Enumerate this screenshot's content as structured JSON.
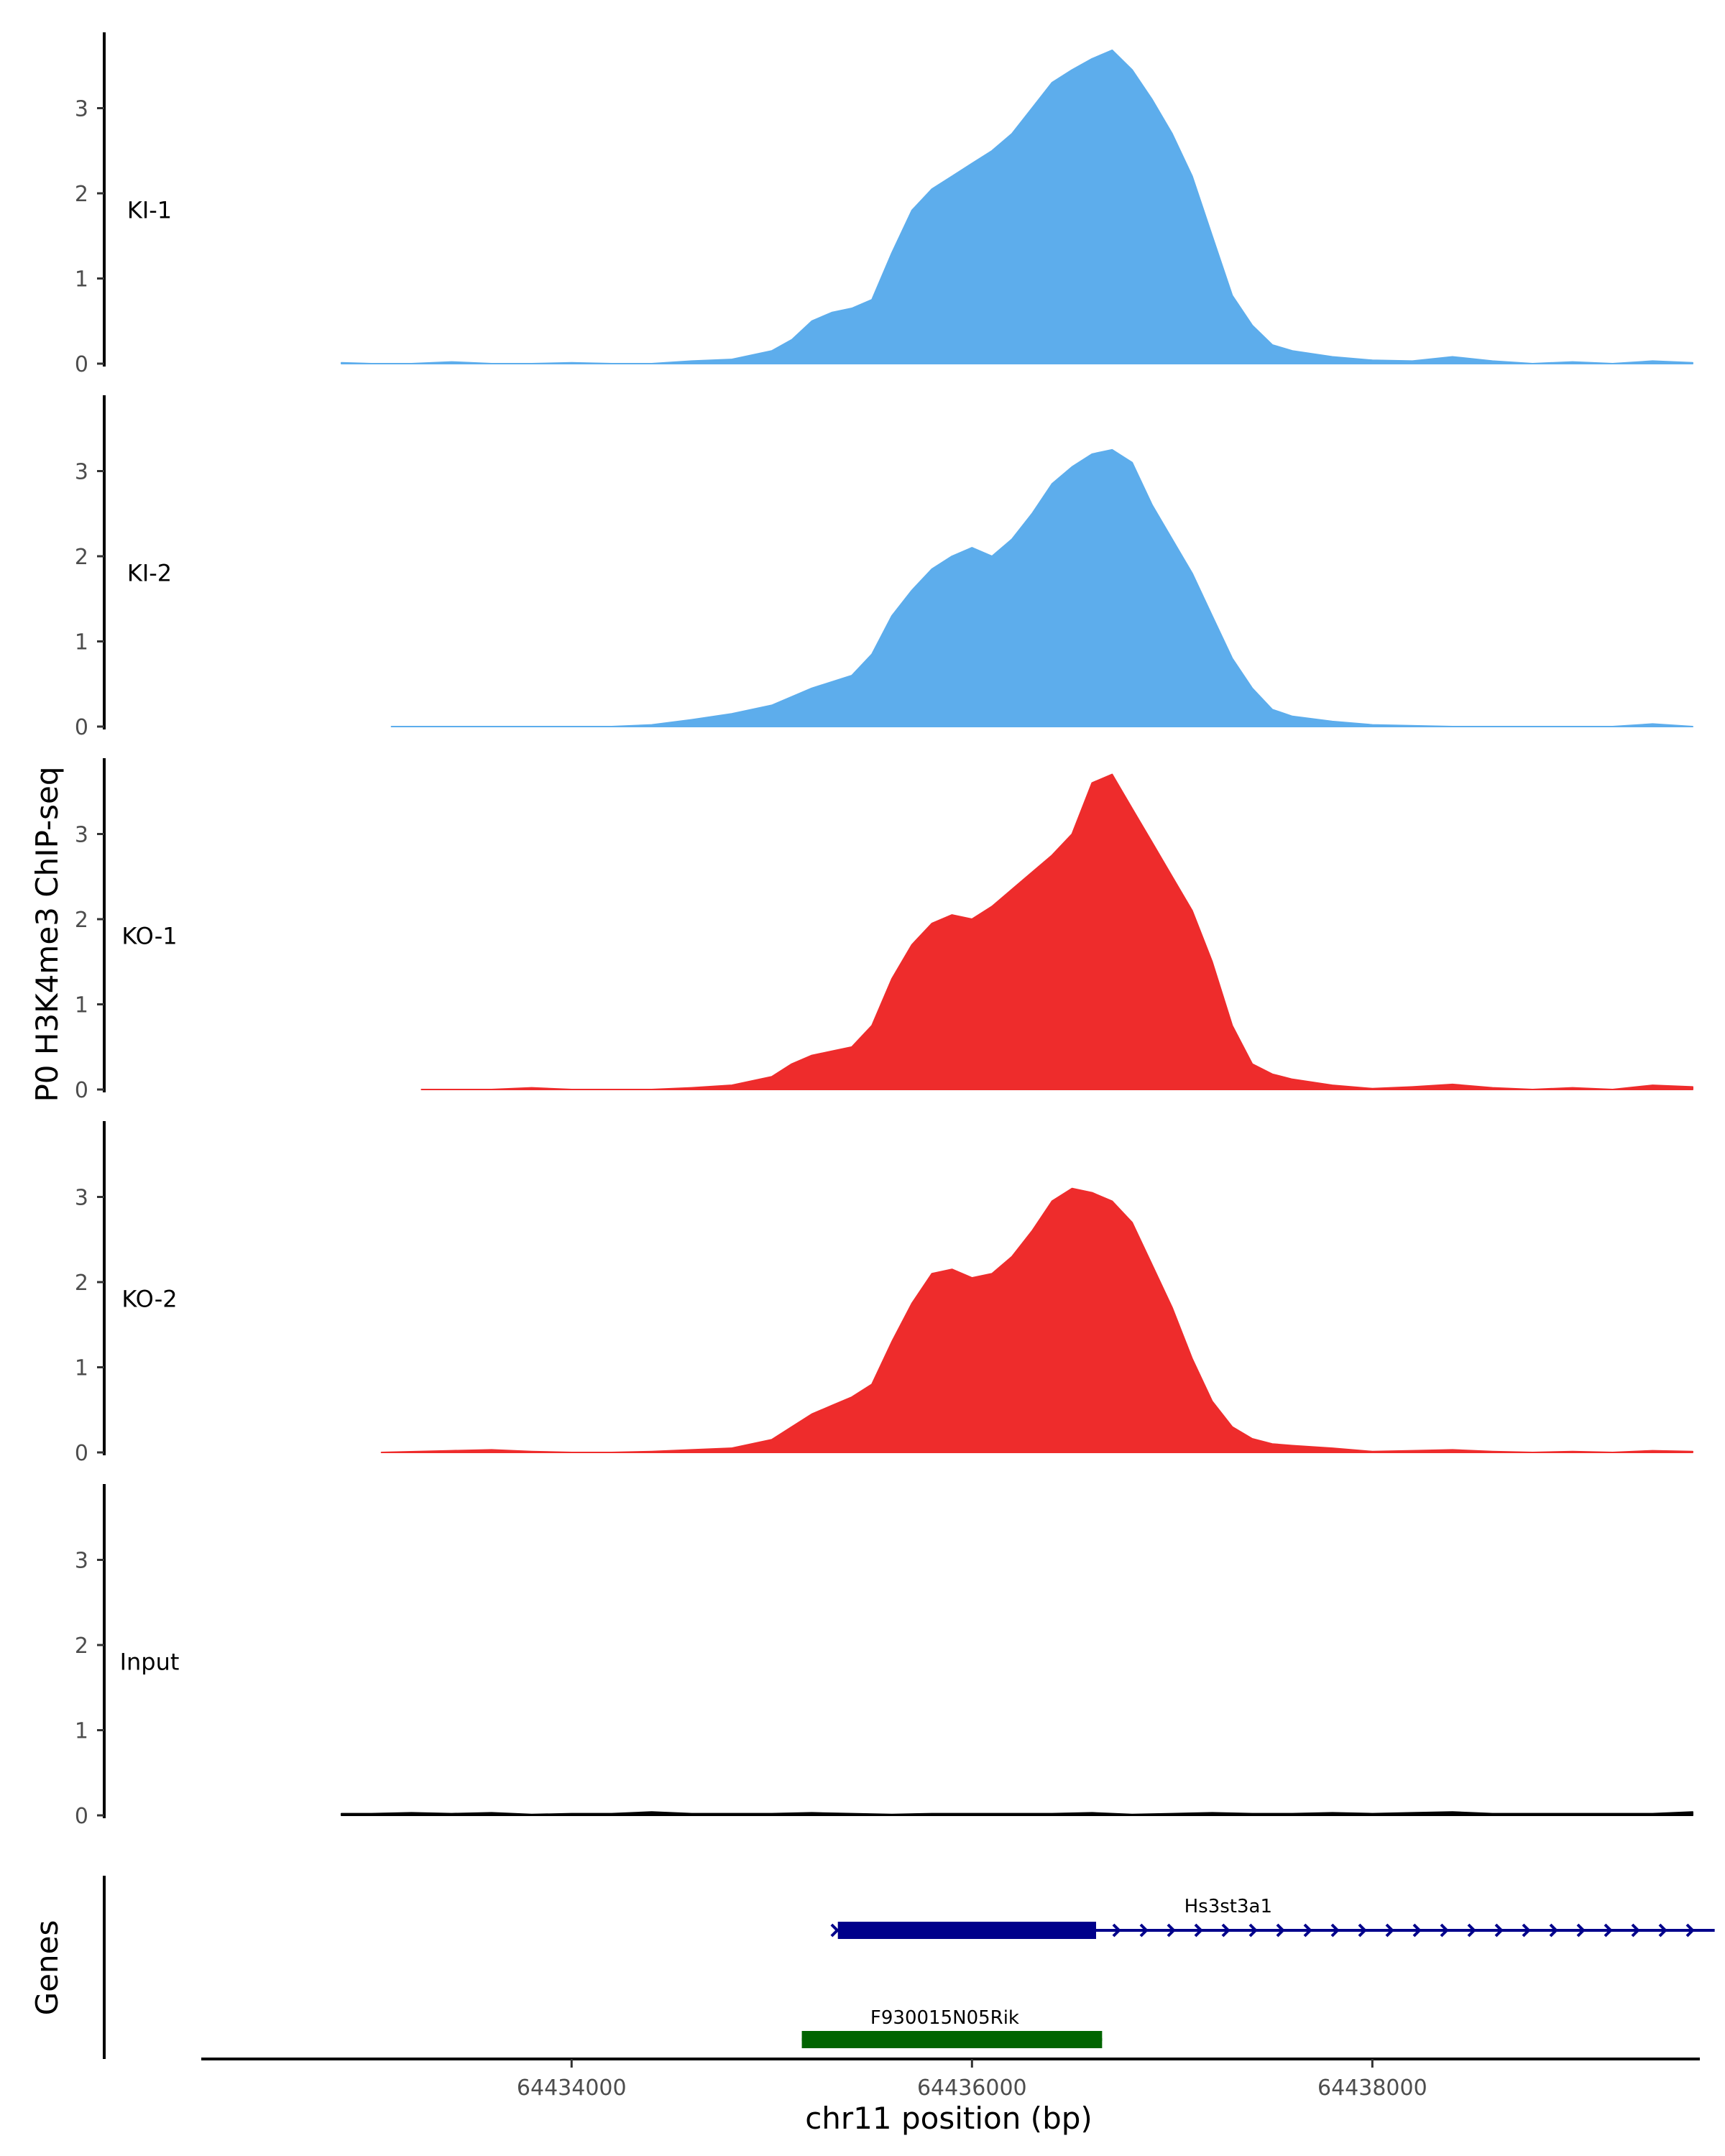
{
  "chart_data": {
    "type": "area",
    "title": "",
    "ylabel": "P0 H3K4me3 ChIP-seq",
    "xlabel": "chr11 position (bp)",
    "genes_label": "Genes",
    "xlim": [
      64432150,
      64439600
    ],
    "ylim": [
      0,
      3.9
    ],
    "y_ticks": [
      0,
      1,
      2,
      3
    ],
    "x_ticks": [
      64434000,
      64436000,
      64438000
    ],
    "x_tick_labels": [
      "64434000",
      "64436000",
      "64438000"
    ],
    "series": [
      {
        "name": "KI-1",
        "color": "#5DADEC",
        "points": [
          [
            64432850,
            0.01
          ],
          [
            64433000,
            0
          ],
          [
            64433200,
            0
          ],
          [
            64433400,
            0.02
          ],
          [
            64433600,
            0
          ],
          [
            64433800,
            0
          ],
          [
            64434000,
            0.01
          ],
          [
            64434200,
            0
          ],
          [
            64434400,
            0
          ],
          [
            64434600,
            0.03
          ],
          [
            64434800,
            0.05
          ],
          [
            64435000,
            0.15
          ],
          [
            64435100,
            0.28
          ],
          [
            64435200,
            0.5
          ],
          [
            64435300,
            0.6
          ],
          [
            64435400,
            0.65
          ],
          [
            64435500,
            0.75
          ],
          [
            64435600,
            1.3
          ],
          [
            64435700,
            1.8
          ],
          [
            64435800,
            2.05
          ],
          [
            64435900,
            2.2
          ],
          [
            64436000,
            2.35
          ],
          [
            64436100,
            2.5
          ],
          [
            64436200,
            2.7
          ],
          [
            64436300,
            3.0
          ],
          [
            64436400,
            3.3
          ],
          [
            64436500,
            3.45
          ],
          [
            64436600,
            3.58
          ],
          [
            64436700,
            3.68
          ],
          [
            64436800,
            3.45
          ],
          [
            64436900,
            3.1
          ],
          [
            64437000,
            2.7
          ],
          [
            64437100,
            2.2
          ],
          [
            64437200,
            1.5
          ],
          [
            64437300,
            0.8
          ],
          [
            64437400,
            0.45
          ],
          [
            64437500,
            0.22
          ],
          [
            64437600,
            0.15
          ],
          [
            64437800,
            0.08
          ],
          [
            64438000,
            0.04
          ],
          [
            64438200,
            0.03
          ],
          [
            64438400,
            0.08
          ],
          [
            64438600,
            0.03
          ],
          [
            64438800,
            0
          ],
          [
            64439000,
            0.02
          ],
          [
            64439200,
            0
          ],
          [
            64439400,
            0.03
          ],
          [
            64439600,
            0.01
          ]
        ]
      },
      {
        "name": "KI-2",
        "color": "#5DADEC",
        "points": [
          [
            64433100,
            0
          ],
          [
            64433600,
            0
          ],
          [
            64434000,
            0
          ],
          [
            64434200,
            0
          ],
          [
            64434400,
            0.02
          ],
          [
            64434600,
            0.08
          ],
          [
            64434800,
            0.15
          ],
          [
            64435000,
            0.25
          ],
          [
            64435200,
            0.45
          ],
          [
            64435400,
            0.6
          ],
          [
            64435500,
            0.85
          ],
          [
            64435600,
            1.3
          ],
          [
            64435700,
            1.6
          ],
          [
            64435800,
            1.85
          ],
          [
            64435900,
            2.0
          ],
          [
            64436000,
            2.1
          ],
          [
            64436100,
            2.0
          ],
          [
            64436200,
            2.2
          ],
          [
            64436300,
            2.5
          ],
          [
            64436400,
            2.85
          ],
          [
            64436500,
            3.05
          ],
          [
            64436600,
            3.2
          ],
          [
            64436700,
            3.25
          ],
          [
            64436800,
            3.1
          ],
          [
            64436900,
            2.6
          ],
          [
            64437000,
            2.2
          ],
          [
            64437100,
            1.8
          ],
          [
            64437200,
            1.3
          ],
          [
            64437300,
            0.8
          ],
          [
            64437400,
            0.45
          ],
          [
            64437500,
            0.2
          ],
          [
            64437600,
            0.12
          ],
          [
            64437800,
            0.06
          ],
          [
            64438000,
            0.02
          ],
          [
            64438400,
            0
          ],
          [
            64438800,
            0
          ],
          [
            64439200,
            0
          ],
          [
            64439400,
            0.03
          ],
          [
            64439600,
            0
          ]
        ]
      },
      {
        "name": "KO-1",
        "color": "#EE2C2C",
        "points": [
          [
            64433250,
            0
          ],
          [
            64433600,
            0
          ],
          [
            64433800,
            0.02
          ],
          [
            64434000,
            0
          ],
          [
            64434200,
            0
          ],
          [
            64434400,
            0
          ],
          [
            64434600,
            0.02
          ],
          [
            64434800,
            0.05
          ],
          [
            64435000,
            0.15
          ],
          [
            64435100,
            0.3
          ],
          [
            64435200,
            0.4
          ],
          [
            64435300,
            0.45
          ],
          [
            64435400,
            0.5
          ],
          [
            64435500,
            0.75
          ],
          [
            64435600,
            1.3
          ],
          [
            64435700,
            1.7
          ],
          [
            64435800,
            1.95
          ],
          [
            64435900,
            2.05
          ],
          [
            64436000,
            2.0
          ],
          [
            64436100,
            2.15
          ],
          [
            64436200,
            2.35
          ],
          [
            64436300,
            2.55
          ],
          [
            64436400,
            2.75
          ],
          [
            64436500,
            3.0
          ],
          [
            64436600,
            3.6
          ],
          [
            64436700,
            3.7
          ],
          [
            64436800,
            3.3
          ],
          [
            64436900,
            2.9
          ],
          [
            64437000,
            2.5
          ],
          [
            64437100,
            2.1
          ],
          [
            64437200,
            1.5
          ],
          [
            64437300,
            0.75
          ],
          [
            64437400,
            0.3
          ],
          [
            64437500,
            0.18
          ],
          [
            64437600,
            0.12
          ],
          [
            64437800,
            0.05
          ],
          [
            64438000,
            0.01
          ],
          [
            64438200,
            0.03
          ],
          [
            64438400,
            0.06
          ],
          [
            64438600,
            0.02
          ],
          [
            64438800,
            0
          ],
          [
            64439000,
            0.02
          ],
          [
            64439200,
            0
          ],
          [
            64439400,
            0.05
          ],
          [
            64439600,
            0.03
          ]
        ]
      },
      {
        "name": "KO-2",
        "color": "#EE2C2C",
        "points": [
          [
            64433050,
            0
          ],
          [
            64433400,
            0.02
          ],
          [
            64433600,
            0.03
          ],
          [
            64433800,
            0.01
          ],
          [
            64434000,
            0
          ],
          [
            64434200,
            0
          ],
          [
            64434400,
            0.01
          ],
          [
            64434600,
            0.03
          ],
          [
            64434800,
            0.05
          ],
          [
            64435000,
            0.15
          ],
          [
            64435100,
            0.3
          ],
          [
            64435200,
            0.45
          ],
          [
            64435300,
            0.55
          ],
          [
            64435400,
            0.65
          ],
          [
            64435500,
            0.8
          ],
          [
            64435600,
            1.3
          ],
          [
            64435700,
            1.75
          ],
          [
            64435800,
            2.1
          ],
          [
            64435900,
            2.15
          ],
          [
            64436000,
            2.05
          ],
          [
            64436100,
            2.1
          ],
          [
            64436200,
            2.3
          ],
          [
            64436300,
            2.6
          ],
          [
            64436400,
            2.95
          ],
          [
            64436500,
            3.1
          ],
          [
            64436600,
            3.05
          ],
          [
            64436700,
            2.95
          ],
          [
            64436800,
            2.7
          ],
          [
            64436900,
            2.2
          ],
          [
            64437000,
            1.7
          ],
          [
            64437100,
            1.1
          ],
          [
            64437200,
            0.6
          ],
          [
            64437300,
            0.3
          ],
          [
            64437400,
            0.16
          ],
          [
            64437500,
            0.1
          ],
          [
            64437600,
            0.08
          ],
          [
            64437800,
            0.05
          ],
          [
            64438000,
            0.01
          ],
          [
            64438200,
            0.02
          ],
          [
            64438400,
            0.03
          ],
          [
            64438600,
            0.01
          ],
          [
            64438800,
            0
          ],
          [
            64439000,
            0.01
          ],
          [
            64439200,
            0
          ],
          [
            64439400,
            0.02
          ],
          [
            64439600,
            0.01
          ]
        ]
      },
      {
        "name": "Input",
        "color": "#000000",
        "points": [
          [
            64432850,
            0.02
          ],
          [
            64433000,
            0.02
          ],
          [
            64433200,
            0.03
          ],
          [
            64433400,
            0.02
          ],
          [
            64433600,
            0.03
          ],
          [
            64433800,
            0.01
          ],
          [
            64434000,
            0.02
          ],
          [
            64434200,
            0.02
          ],
          [
            64434400,
            0.04
          ],
          [
            64434600,
            0.02
          ],
          [
            64434800,
            0.02
          ],
          [
            64435000,
            0.02
          ],
          [
            64435200,
            0.03
          ],
          [
            64435400,
            0.02
          ],
          [
            64435600,
            0.01
          ],
          [
            64435800,
            0.02
          ],
          [
            64436000,
            0.02
          ],
          [
            64436200,
            0.02
          ],
          [
            64436400,
            0.02
          ],
          [
            64436600,
            0.03
          ],
          [
            64436800,
            0.01
          ],
          [
            64437000,
            0.02
          ],
          [
            64437200,
            0.03
          ],
          [
            64437400,
            0.02
          ],
          [
            64437600,
            0.02
          ],
          [
            64437800,
            0.03
          ],
          [
            64438000,
            0.02
          ],
          [
            64438200,
            0.03
          ],
          [
            64438400,
            0.04
          ],
          [
            64438600,
            0.02
          ],
          [
            64438800,
            0.02
          ],
          [
            64439000,
            0.02
          ],
          [
            64439200,
            0.02
          ],
          [
            64439400,
            0.02
          ],
          [
            64439600,
            0.04
          ]
        ]
      }
    ],
    "genes": [
      {
        "name": "Hs3st3a1",
        "color": "#00008B",
        "start": 64435320,
        "end": 64439710,
        "thick_start": 64435330,
        "thick_end": 64436620,
        "strand": "+"
      },
      {
        "name": "F930015N05Rik",
        "color": "#006400",
        "start": 64435150,
        "end": 64436650,
        "thick_start": 64435150,
        "thick_end": 64436650,
        "strand": ""
      }
    ]
  }
}
